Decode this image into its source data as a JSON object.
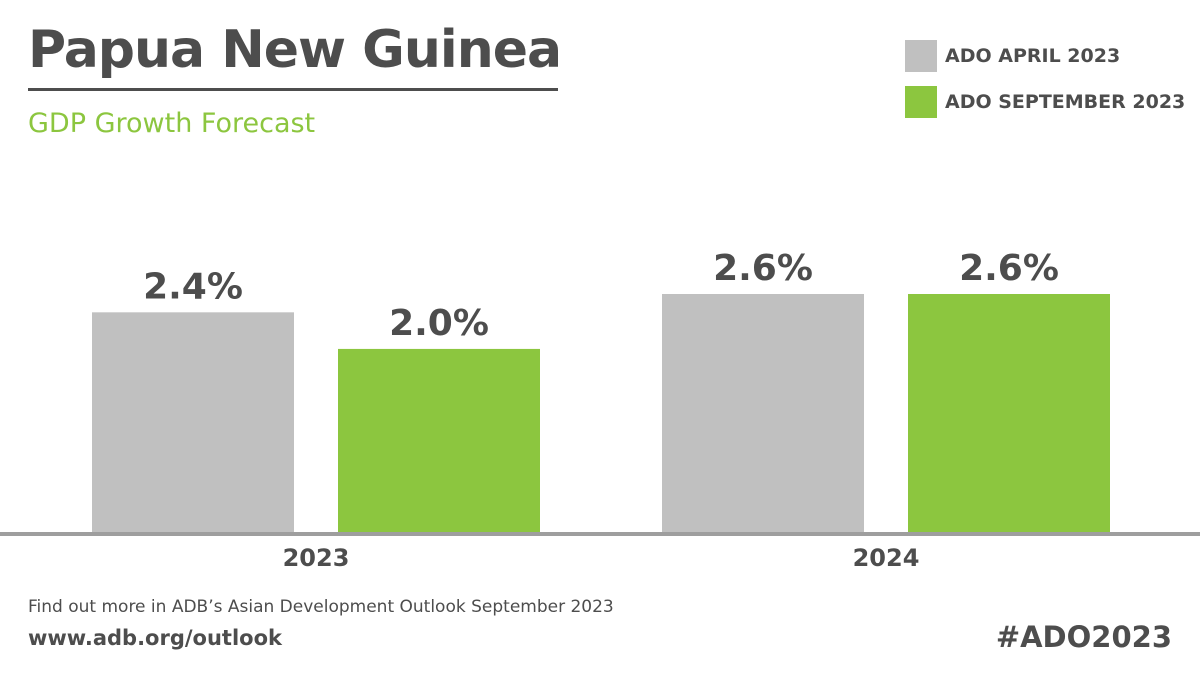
{
  "header": {
    "title": "Papua New Guinea",
    "subtitle": "GDP Growth Forecast"
  },
  "legend": {
    "items": [
      {
        "label": "ADO APRIL 2023",
        "color": "#c0c0c0"
      },
      {
        "label": "ADO SEPTEMBER 2023",
        "color": "#8cc63f"
      }
    ]
  },
  "footer": {
    "note": "Find out more in ADB’s Asian Development Outlook September 2023",
    "url": "www.adb.org/outlook",
    "hashtag": "#ADO2023"
  },
  "chart_data": {
    "type": "bar",
    "title": "Papua New Guinea",
    "subtitle": "GDP Growth Forecast",
    "categories": [
      "2023",
      "2024"
    ],
    "series": [
      {
        "name": "ADO APRIL 2023",
        "color": "#c0c0c0",
        "values": [
          2.4,
          2.6
        ],
        "labels": [
          "2.4%",
          "2.6%"
        ]
      },
      {
        "name": "ADO SEPTEMBER 2023",
        "color": "#8cc63f",
        "values": [
          2.0,
          2.6
        ],
        "labels": [
          "2.0%",
          "2.6%"
        ]
      }
    ],
    "ylim": [
      0,
      2.6
    ],
    "xlabel": "",
    "ylabel": "",
    "grid": false,
    "legend_position": "top-right",
    "axis_color": "#9e9e9e",
    "label_color": "#4d4d4d"
  }
}
